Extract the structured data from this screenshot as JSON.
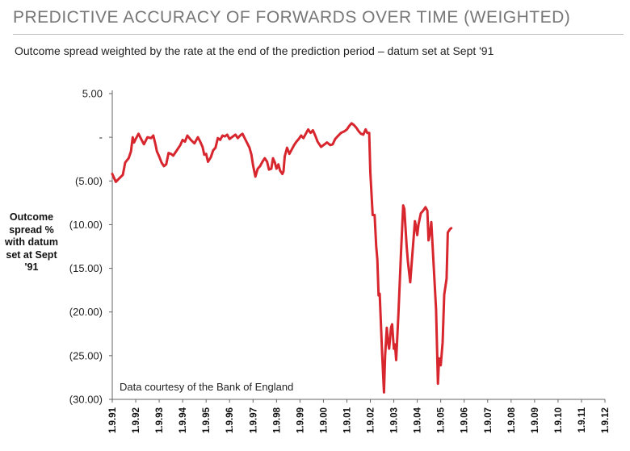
{
  "chart_data": {
    "type": "line",
    "title": "PREDICTIVE ACCURACY OF FORWARDS OVER TIME (WEIGHTED)",
    "subtitle": "Outcome spread weighted by the rate at the end of the prediction period – datum set at Sept '91",
    "ylabel": "Outcome spread % with datum set at Sept '91",
    "note": "Data courtesy of the Bank of England",
    "ylim": [
      -30,
      5
    ],
    "xlim": [
      1991,
      2012
    ],
    "y_ticks": [
      {
        "value": 5,
        "label": "5.00"
      },
      {
        "value": 0,
        "label": "-"
      },
      {
        "value": -5,
        "label": "(5.00)"
      },
      {
        "value": -10,
        "label": "(10.00)"
      },
      {
        "value": -15,
        "label": "(15.00)"
      },
      {
        "value": -20,
        "label": "(20.00)"
      },
      {
        "value": -25,
        "label": "(25.00)"
      },
      {
        "value": -30,
        "label": "(30.00)"
      }
    ],
    "x_ticks": [
      {
        "value": 1991,
        "label": "1.9.91"
      },
      {
        "value": 1992,
        "label": "1.9.92"
      },
      {
        "value": 1993,
        "label": "1.9.93"
      },
      {
        "value": 1994,
        "label": "1.9.94"
      },
      {
        "value": 1995,
        "label": "1.9.95"
      },
      {
        "value": 1996,
        "label": "1.9.96"
      },
      {
        "value": 1997,
        "label": "1.9.97"
      },
      {
        "value": 1998,
        "label": "1.9.98"
      },
      {
        "value": 1999,
        "label": "1.9.99"
      },
      {
        "value": 2000,
        "label": "1.9.00"
      },
      {
        "value": 2001,
        "label": "1.9.01"
      },
      {
        "value": 2002,
        "label": "1.9.02"
      },
      {
        "value": 2003,
        "label": "1.9.03"
      },
      {
        "value": 2004,
        "label": "1.9.04"
      },
      {
        "value": 2005,
        "label": "1.9.05"
      },
      {
        "value": 2006,
        "label": "1.9.06"
      },
      {
        "value": 2007,
        "label": "1.9.07"
      },
      {
        "value": 2008,
        "label": "1.9.08"
      },
      {
        "value": 2009,
        "label": "1.9.09"
      },
      {
        "value": 2010,
        "label": "1.9.10"
      },
      {
        "value": 2011,
        "label": "1.9.11"
      },
      {
        "value": 2012,
        "label": "1.9.12"
      }
    ],
    "grid": false,
    "series": [
      {
        "color": "#d7262e",
        "points": [
          [
            1991.0,
            -4.2
          ],
          [
            1991.15,
            -5.1
          ],
          [
            1991.3,
            -4.7
          ],
          [
            1991.45,
            -4.3
          ],
          [
            1991.55,
            -2.9
          ],
          [
            1991.7,
            -2.4
          ],
          [
            1991.8,
            -1.6
          ],
          [
            1991.87,
            0.0
          ],
          [
            1991.93,
            -0.6
          ],
          [
            1992.0,
            -0.2
          ],
          [
            1992.12,
            0.4
          ],
          [
            1992.25,
            -0.3
          ],
          [
            1992.35,
            -0.8
          ],
          [
            1992.5,
            0.0
          ],
          [
            1992.65,
            -0.1
          ],
          [
            1992.75,
            0.2
          ],
          [
            1992.85,
            -0.9
          ],
          [
            1992.9,
            -1.6
          ],
          [
            1993.0,
            -2.2
          ],
          [
            1993.1,
            -2.9
          ],
          [
            1993.2,
            -3.3
          ],
          [
            1993.3,
            -3.1
          ],
          [
            1993.4,
            -1.8
          ],
          [
            1993.5,
            -1.9
          ],
          [
            1993.6,
            -2.1
          ],
          [
            1993.75,
            -1.5
          ],
          [
            1993.9,
            -0.9
          ],
          [
            1994.0,
            -0.3
          ],
          [
            1994.1,
            -0.5
          ],
          [
            1994.2,
            0.2
          ],
          [
            1994.35,
            -0.3
          ],
          [
            1994.5,
            -0.7
          ],
          [
            1994.65,
            0.0
          ],
          [
            1994.75,
            -0.5
          ],
          [
            1994.85,
            -1.1
          ],
          [
            1994.92,
            -2.0
          ],
          [
            1995.0,
            -1.9
          ],
          [
            1995.08,
            -2.8
          ],
          [
            1995.2,
            -2.3
          ],
          [
            1995.3,
            -1.5
          ],
          [
            1995.4,
            -1.2
          ],
          [
            1995.5,
            -0.1
          ],
          [
            1995.6,
            -0.3
          ],
          [
            1995.7,
            0.2
          ],
          [
            1995.8,
            0.1
          ],
          [
            1995.9,
            0.3
          ],
          [
            1996.0,
            -0.2
          ],
          [
            1996.1,
            0.0
          ],
          [
            1996.25,
            0.3
          ],
          [
            1996.35,
            -0.1
          ],
          [
            1996.45,
            0.2
          ],
          [
            1996.55,
            0.4
          ],
          [
            1996.7,
            -0.4
          ],
          [
            1996.85,
            -1.2
          ],
          [
            1996.93,
            -2.0
          ],
          [
            1997.0,
            -3.2
          ],
          [
            1997.1,
            -4.5
          ],
          [
            1997.2,
            -3.6
          ],
          [
            1997.3,
            -3.3
          ],
          [
            1997.4,
            -2.8
          ],
          [
            1997.5,
            -2.4
          ],
          [
            1997.6,
            -2.8
          ],
          [
            1997.68,
            -3.7
          ],
          [
            1997.78,
            -3.6
          ],
          [
            1997.85,
            -2.4
          ],
          [
            1997.93,
            -2.9
          ],
          [
            1998.0,
            -3.6
          ],
          [
            1998.08,
            -3.1
          ],
          [
            1998.15,
            -3.8
          ],
          [
            1998.25,
            -4.2
          ],
          [
            1998.3,
            -3.9
          ],
          [
            1998.35,
            -2.2
          ],
          [
            1998.45,
            -1.2
          ],
          [
            1998.55,
            -1.9
          ],
          [
            1998.65,
            -1.4
          ],
          [
            1998.75,
            -0.9
          ],
          [
            1998.85,
            -0.5
          ],
          [
            1998.95,
            -0.2
          ],
          [
            1999.05,
            0.2
          ],
          [
            1999.15,
            -0.1
          ],
          [
            1999.25,
            0.4
          ],
          [
            1999.35,
            0.9
          ],
          [
            1999.45,
            0.5
          ],
          [
            1999.55,
            0.8
          ],
          [
            1999.65,
            0.2
          ],
          [
            1999.75,
            -0.5
          ],
          [
            1999.9,
            -1.1
          ],
          [
            2000.0,
            -0.9
          ],
          [
            2000.15,
            -0.6
          ],
          [
            2000.3,
            -0.9
          ],
          [
            2000.4,
            -0.8
          ],
          [
            2000.5,
            -0.2
          ],
          [
            2000.6,
            0.1
          ],
          [
            2000.75,
            0.5
          ],
          [
            2000.9,
            0.7
          ],
          [
            2001.0,
            0.9
          ],
          [
            2001.1,
            1.3
          ],
          [
            2001.2,
            1.6
          ],
          [
            2001.3,
            1.4
          ],
          [
            2001.4,
            1.1
          ],
          [
            2001.5,
            0.7
          ],
          [
            2001.6,
            0.4
          ],
          [
            2001.7,
            0.3
          ],
          [
            2001.8,
            0.9
          ],
          [
            2001.87,
            0.5
          ],
          [
            2001.95,
            0.5
          ],
          [
            2002.0,
            -4.0
          ],
          [
            2002.1,
            -8.9
          ],
          [
            2002.18,
            -8.9
          ],
          [
            2002.25,
            -12.5
          ],
          [
            2002.3,
            -14.0
          ],
          [
            2002.35,
            -18.1
          ],
          [
            2002.4,
            -17.9
          ],
          [
            2002.5,
            -24.5
          ],
          [
            2002.58,
            -29.2
          ],
          [
            2002.63,
            -25.0
          ],
          [
            2002.7,
            -21.8
          ],
          [
            2002.75,
            -23.4
          ],
          [
            2002.8,
            -24.2
          ],
          [
            2002.88,
            -21.8
          ],
          [
            2002.93,
            -21.4
          ],
          [
            2003.0,
            -24.2
          ],
          [
            2003.05,
            -23.7
          ],
          [
            2003.1,
            -25.5
          ],
          [
            2003.2,
            -20.0
          ],
          [
            2003.3,
            -13.6
          ],
          [
            2003.4,
            -7.8
          ],
          [
            2003.45,
            -8.2
          ],
          [
            2003.55,
            -12.5
          ],
          [
            2003.6,
            -14.2
          ],
          [
            2003.7,
            -16.6
          ],
          [
            2003.8,
            -13.1
          ],
          [
            2003.9,
            -9.6
          ],
          [
            2003.95,
            -10.3
          ],
          [
            2004.0,
            -11.2
          ],
          [
            2004.05,
            -10.0
          ],
          [
            2004.15,
            -8.7
          ],
          [
            2004.25,
            -8.4
          ],
          [
            2004.35,
            -8.0
          ],
          [
            2004.43,
            -8.4
          ],
          [
            2004.48,
            -11.8
          ],
          [
            2004.55,
            -10.8
          ],
          [
            2004.6,
            -9.7
          ],
          [
            2004.7,
            -14.8
          ],
          [
            2004.8,
            -19.7
          ],
          [
            2004.88,
            -28.2
          ],
          [
            2004.93,
            -25.3
          ],
          [
            2005.0,
            -26.1
          ],
          [
            2005.08,
            -23.5
          ],
          [
            2005.15,
            -18.0
          ],
          [
            2005.25,
            -16.2
          ],
          [
            2005.3,
            -10.9
          ],
          [
            2005.4,
            -10.5
          ],
          [
            2005.45,
            -10.4
          ]
        ]
      }
    ]
  }
}
